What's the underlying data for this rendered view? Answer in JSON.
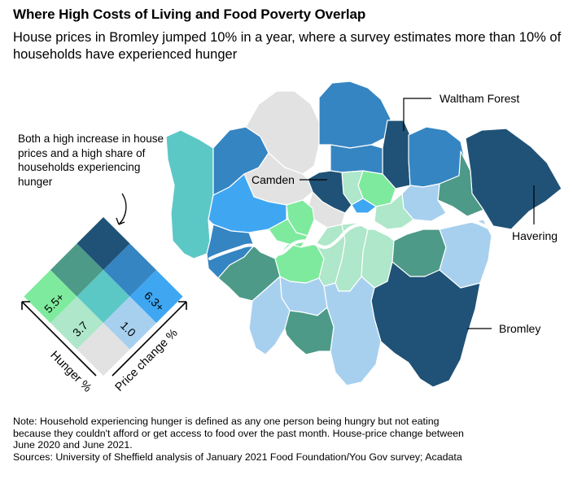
{
  "header": {
    "title": "Where High Costs of Living and Food Poverty Overlap",
    "subtitle": "House prices in Bromley jumped 10% in a year, where a survey estimates more than 10% of households have experienced hunger"
  },
  "annotation": {
    "text": "Both a high increase in house prices and a high share of households experiencing hunger"
  },
  "legend": {
    "axis_hunger": "Hunger %",
    "axis_price": "Price change %",
    "hunger_thresholds": [
      "3.7",
      "5.5+"
    ],
    "price_thresholds": [
      "1.0",
      "6.3+"
    ],
    "colors": {
      "low_low": "#e2e2e2",
      "low_mid": "#a7d0ef",
      "low_high": "#3fa6f2",
      "mid_low": "#aee7c9",
      "mid_mid": "#5cc8c6",
      "mid_high": "#3585c2",
      "high_low": "#7eea9d",
      "high_mid": "#4c9a87",
      "high_high": "#1f5276"
    }
  },
  "map": {
    "labels": {
      "waltham_forest": "Waltham Forest",
      "camden": "Camden",
      "havering": "Havering",
      "bromley": "Bromley"
    },
    "river_color": "#ffffff"
  },
  "footer": {
    "note_1": "Note: Household experiencing hunger is defined as any one person being hungry but not eating",
    "note_2": "because they couldn't afford or get access to food over the past month. House-price change between",
    "note_3": "June 2020 and June 2021.",
    "sources": "Sources: University of Sheffield analysis of January 2021 Food Foundation/You Gov survey; Acadata"
  }
}
